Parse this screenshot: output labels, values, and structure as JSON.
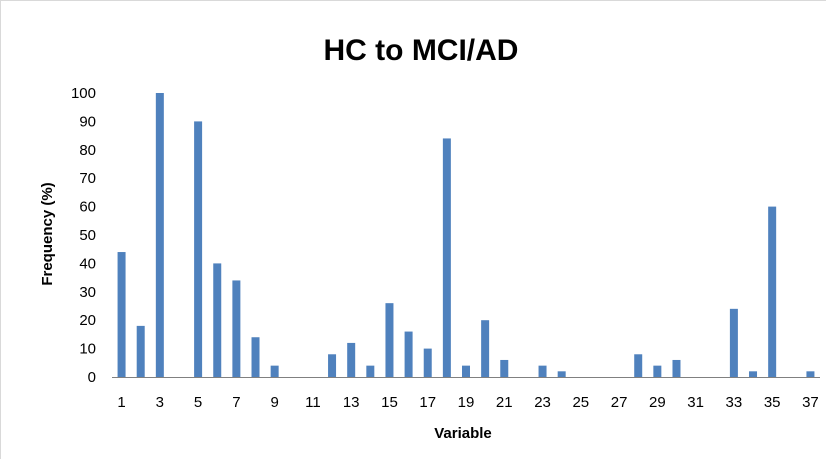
{
  "chart_data": {
    "type": "bar",
    "title": "HC to MCI/AD",
    "xlabel": "Variable",
    "ylabel": "Frequency (%)",
    "ylim": [
      0,
      100
    ],
    "yticks": [
      0,
      10,
      20,
      30,
      40,
      50,
      60,
      70,
      80,
      90,
      100
    ],
    "xtick_labels": [
      "1",
      "3",
      "5",
      "7",
      "9",
      "11",
      "13",
      "15",
      "17",
      "19",
      "21",
      "23",
      "25",
      "27",
      "29",
      "31",
      "33",
      "35",
      "37"
    ],
    "categories": [
      1,
      2,
      3,
      4,
      5,
      6,
      7,
      8,
      9,
      10,
      11,
      12,
      13,
      14,
      15,
      16,
      17,
      18,
      19,
      20,
      21,
      22,
      23,
      24,
      25,
      26,
      27,
      28,
      29,
      30,
      31,
      32,
      33,
      34,
      35,
      36,
      37
    ],
    "values": [
      44,
      18,
      100,
      0,
      90,
      40,
      34,
      14,
      4,
      0,
      0,
      8,
      12,
      4,
      26,
      16,
      10,
      84,
      4,
      20,
      6,
      0,
      4,
      2,
      0,
      0,
      0,
      8,
      4,
      6,
      0,
      0,
      24,
      2,
      60,
      0,
      2
    ],
    "bar_color": "#4f81bd",
    "grid": false,
    "legend": "none"
  }
}
